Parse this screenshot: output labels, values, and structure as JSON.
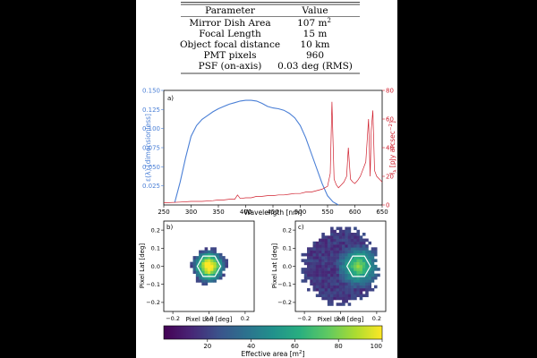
{
  "table": {
    "headers": [
      "Parameter",
      "Value"
    ],
    "rows": [
      [
        "Mirror Dish Area",
        "107 m",
        "2"
      ],
      [
        "Focal Length",
        "15 m",
        ""
      ],
      [
        "Object focal distance",
        "10 km",
        ""
      ],
      [
        "PMT pixels",
        "960",
        ""
      ],
      [
        "PSF (on-axis)",
        "0.03 deg (RMS)",
        ""
      ]
    ]
  },
  "panel_a": {
    "label": "a)",
    "colors": {
      "left": "#4a7fd6",
      "right": "#d0202e"
    }
  },
  "panel_b": {
    "label": "b)"
  },
  "panel_c": {
    "label": "c)"
  },
  "colorbar": {
    "label": "Effective area [m",
    "label_sup": "2",
    "label_end": "]"
  },
  "chart_data": [
    {
      "type": "line",
      "title": "",
      "xlabel": "Wavelength [nm]",
      "ylabel_left": "ε(λ) [dimensionless]",
      "ylabel_right": "I",
      "ylabel_right_sub": "λ",
      "ylabel_right_unit": " [pJy arcsec",
      "ylabel_right_sup": "−2",
      "ylabel_right_end": "]",
      "xlim": [
        250,
        650
      ],
      "ylim_left": [
        0,
        0.15
      ],
      "ylim_right": [
        0,
        80
      ],
      "xticks": [
        "250",
        "300",
        "350",
        "400",
        "450",
        "500",
        "550",
        "600",
        "650"
      ],
      "yticks_left": [
        "0.025",
        "0.050",
        "0.075",
        "0.100",
        "0.125",
        "0.150"
      ],
      "yticks_right": [
        "0",
        "20",
        "40",
        "60",
        "80"
      ],
      "series": [
        {
          "axis": "left",
          "x": [
            270,
            280,
            290,
            300,
            310,
            320,
            330,
            340,
            350,
            360,
            370,
            380,
            390,
            400,
            410,
            420,
            430,
            440,
            450,
            460,
            470,
            480,
            490,
            500,
            510,
            520,
            530,
            540,
            550,
            560,
            570
          ],
          "y": [
            0.003,
            0.03,
            0.062,
            0.09,
            0.104,
            0.112,
            0.117,
            0.122,
            0.126,
            0.129,
            0.132,
            0.134,
            0.136,
            0.137,
            0.137,
            0.136,
            0.133,
            0.129,
            0.127,
            0.126,
            0.124,
            0.12,
            0.114,
            0.104,
            0.088,
            0.068,
            0.048,
            0.028,
            0.012,
            0.004,
            0.0
          ]
        },
        {
          "axis": "right",
          "x": [
            250,
            280,
            300,
            320,
            340,
            350,
            360,
            370,
            380,
            385,
            390,
            400,
            410,
            420,
            430,
            440,
            450,
            460,
            470,
            480,
            490,
            500,
            510,
            520,
            530,
            540,
            550,
            555,
            558,
            562,
            566,
            570,
            575,
            580,
            585,
            588,
            592,
            596,
            600,
            605,
            610,
            620,
            625,
            628,
            630,
            633,
            636,
            640,
            645,
            650
          ],
          "y": [
            1.5,
            2,
            2.5,
            2.5,
            3,
            3.5,
            3.5,
            4,
            4,
            7,
            4.5,
            5,
            5,
            6,
            6,
            6.5,
            6.5,
            7,
            7,
            7.5,
            8,
            8,
            9,
            9,
            10,
            11,
            13,
            22,
            72,
            18,
            14,
            12,
            14,
            16,
            20,
            40,
            18,
            16,
            15,
            17,
            20,
            30,
            60,
            20,
            52,
            66,
            24,
            20,
            18,
            16
          ]
        }
      ]
    },
    {
      "type": "heatmap",
      "xlabel": "Pixel Lon [deg]",
      "ylabel": "Pixel Lat [deg]",
      "xlim": [
        -0.25,
        0.25
      ],
      "ylim": [
        -0.25,
        0.25
      ],
      "xticks": [
        "−0.2",
        "0.0",
        "0.2"
      ],
      "yticks": [
        "0.2",
        "0.1",
        "0.0",
        "−0.1",
        "−0.2"
      ],
      "center": [
        0.0,
        0.0
      ],
      "radius": 0.095,
      "peak": 100
    },
    {
      "type": "heatmap",
      "xlabel": "Pixel Lon [deg]",
      "ylabel": "Pixel Lat [deg]",
      "xlim": [
        -0.25,
        0.25
      ],
      "ylim": [
        -0.25,
        0.25
      ],
      "xticks": [
        "−0.2",
        "0.0",
        "0.2"
      ],
      "yticks": [
        "0.2",
        "0.1",
        "0.0",
        "−0.1",
        "−0.2"
      ],
      "center": [
        0.1,
        0.0
      ],
      "radius": 0.2,
      "peak": 75
    },
    {
      "type": "colorbar",
      "range": [
        0,
        100
      ],
      "ticks": [
        "20",
        "40",
        "60",
        "80",
        "100"
      ],
      "tick_values": [
        20,
        40,
        60,
        80,
        100
      ]
    }
  ]
}
